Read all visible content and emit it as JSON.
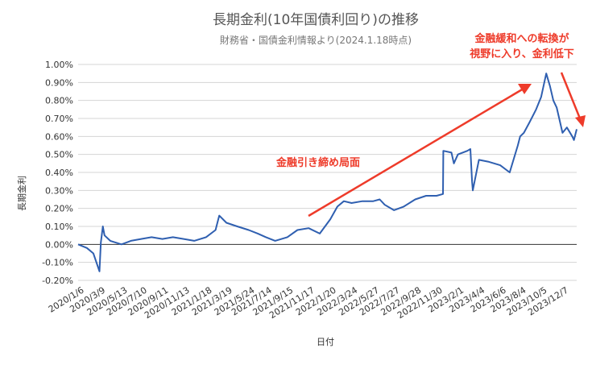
{
  "chart_data": {
    "type": "line",
    "title": "長期金利(10年国債利回り)の推移",
    "subtitle": "財務省・国債金利情報より(2024.1.18時点)",
    "xlabel": "日付",
    "ylabel": "長期金利",
    "ylim": [
      -0.2,
      1.0
    ],
    "y_ticks": [
      "-0.20%",
      "-0.10%",
      "0.00%",
      "0.10%",
      "0.20%",
      "0.30%",
      "0.40%",
      "0.50%",
      "0.60%",
      "0.70%",
      "0.80%",
      "0.90%",
      "1.00%"
    ],
    "x_ticks": [
      "2020/1/6",
      "2020/3/9",
      "2020/5/13",
      "2020/7/10",
      "2020/9/11",
      "2020/11/13",
      "2021/1/18",
      "2021/3/19",
      "2021/5/24",
      "2021/7/14",
      "2021/9/15",
      "2021/11/17",
      "2022/1/20",
      "2022/3/24",
      "2022/5/27",
      "2022/7/27",
      "2022/9/28",
      "2022/11/30",
      "2023/2/1",
      "2023/4/4",
      "2023/6/6",
      "2023/8/4",
      "2023/10/5",
      "2023/12/7"
    ],
    "grid": true,
    "series": [
      {
        "color": "#2f5fb0",
        "x": [
          "2020/1/6",
          "2020/2/1",
          "2020/2/20",
          "2020/3/9",
          "2020/3/13",
          "2020/3/19",
          "2020/3/24",
          "2020/4/10",
          "2020/5/13",
          "2020/6/10",
          "2020/7/10",
          "2020/8/10",
          "2020/9/11",
          "2020/10/12",
          "2020/11/13",
          "2020/12/14",
          "2021/1/18",
          "2021/2/15",
          "2021/2/26",
          "2021/3/19",
          "2021/4/20",
          "2021/5/24",
          "2021/6/20",
          "2021/7/14",
          "2021/8/10",
          "2021/9/15",
          "2021/10/15",
          "2021/11/17",
          "2021/12/20",
          "2022/1/20",
          "2022/2/10",
          "2022/3/1",
          "2022/3/24",
          "2022/4/25",
          "2022/5/27",
          "2022/6/15",
          "2022/6/30",
          "2022/7/27",
          "2022/8/25",
          "2022/9/28",
          "2022/10/30",
          "2022/11/30",
          "2022/12/19",
          "2022/12/20",
          "2023/1/13",
          "2023/1/20",
          "2023/2/1",
          "2023/3/1",
          "2023/3/10",
          "2023/3/15",
          "2023/3/17",
          "2023/4/4",
          "2023/5/1",
          "2023/6/6",
          "2023/7/4",
          "2023/7/28",
          "2023/8/4",
          "2023/8/15",
          "2023/9/1",
          "2023/9/20",
          "2023/10/5",
          "2023/10/20",
          "2023/10/31",
          "2023/11/10",
          "2023/11/20",
          "2023/12/7",
          "2023/12/20",
          "2024/1/5",
          "2024/1/10",
          "2024/1/18"
        ],
        "values": [
          0.0,
          -0.02,
          -0.05,
          -0.15,
          0.01,
          0.1,
          0.05,
          0.02,
          0.0,
          0.02,
          0.03,
          0.04,
          0.03,
          0.04,
          0.03,
          0.02,
          0.04,
          0.08,
          0.16,
          0.12,
          0.1,
          0.08,
          0.06,
          0.04,
          0.02,
          0.04,
          0.08,
          0.09,
          0.06,
          0.14,
          0.21,
          0.24,
          0.23,
          0.24,
          0.24,
          0.25,
          0.22,
          0.19,
          0.21,
          0.25,
          0.27,
          0.27,
          0.28,
          0.52,
          0.51,
          0.45,
          0.5,
          0.52,
          0.53,
          0.35,
          0.3,
          0.47,
          0.46,
          0.44,
          0.4,
          0.55,
          0.6,
          0.62,
          0.68,
          0.75,
          0.82,
          0.95,
          0.88,
          0.8,
          0.76,
          0.62,
          0.65,
          0.6,
          0.58,
          0.64
        ]
      }
    ],
    "annotations": [
      {
        "text": "金融引き締め局面",
        "color": "#ee3b2a"
      },
      {
        "text_lines": [
          "金融緩和への転換が",
          "視野に入り、金利低下"
        ],
        "color": "#ee3b2a"
      }
    ]
  }
}
